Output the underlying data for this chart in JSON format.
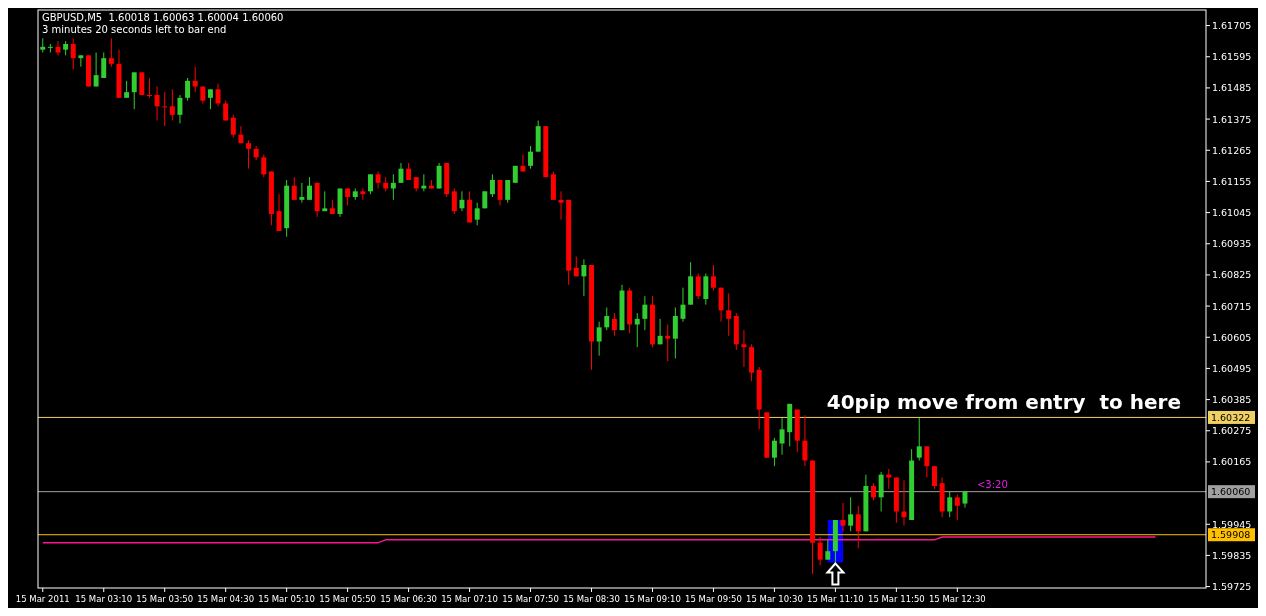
{
  "chart_data": {
    "type": "candlestick",
    "title": "GBPUSD,M5  1.60018 1.60063 1.60004 1.60060",
    "subtitle": "3 minutes 20 seconds left to bar end",
    "categories": [
      "15 Mar 2011",
      null,
      null,
      null,
      null,
      null,
      null,
      null,
      "15 Mar 03:10",
      null,
      null,
      null,
      null,
      null,
      null,
      null,
      "15 Mar 03:50",
      null,
      null,
      null,
      null,
      null,
      null,
      null,
      "15 Mar 04:30",
      null,
      null,
      null,
      null,
      null,
      null,
      null,
      "15 Mar 05:10",
      null,
      null,
      null,
      null,
      null,
      null,
      null,
      "15 Mar 05:50",
      null,
      null,
      null,
      null,
      null,
      null,
      null,
      "15 Mar 06:30",
      null,
      null,
      null,
      null,
      null,
      null,
      null,
      "15 Mar 07:10",
      null,
      null,
      null,
      null,
      null,
      null,
      null,
      "15 Mar 07:50",
      null,
      null,
      null,
      null,
      null,
      null,
      null,
      "15 Mar 08:30",
      null,
      null,
      null,
      null,
      null,
      null,
      null,
      "15 Mar 09:10",
      null,
      null,
      null,
      null,
      null,
      null,
      null,
      "15 Mar 09:50",
      null,
      null,
      null,
      null,
      null,
      null,
      null,
      "15 Mar 10:30",
      null,
      null,
      null,
      null,
      null,
      null,
      null,
      "15 Mar 11:10",
      null,
      null,
      null,
      null,
      null,
      null,
      null,
      "15 Mar 11:50",
      null,
      null,
      null,
      null,
      null,
      null,
      null,
      "15 Mar 12:30",
      null,
      null,
      null,
      null,
      null,
      null,
      null,
      null,
      null,
      null,
      null,
      null,
      null,
      null,
      null,
      null,
      null,
      null,
      null,
      null,
      null,
      null,
      null,
      null,
      null,
      null,
      null,
      null,
      null,
      null,
      null,
      null
    ],
    "ohlc": [
      [
        1.6162,
        1.6166,
        1.6161,
        1.6163
      ],
      [
        1.6163,
        1.6164,
        1.6161,
        1.6163
      ],
      [
        1.6163,
        1.6165,
        1.616,
        1.6161
      ],
      [
        1.6162,
        1.6165,
        1.616,
        1.6164
      ],
      [
        1.6164,
        1.6166,
        1.6155,
        1.6159
      ],
      [
        1.6159,
        1.616,
        1.6156,
        1.616
      ],
      [
        1.616,
        1.616,
        1.6149,
        1.6149
      ],
      [
        1.6149,
        1.6161,
        1.6149,
        1.6153
      ],
      [
        1.6152,
        1.6161,
        1.6152,
        1.6159
      ],
      [
        1.6159,
        1.6166,
        1.6156,
        1.6157
      ],
      [
        1.6157,
        1.6162,
        1.6145,
        1.6145
      ],
      [
        1.6145,
        1.6151,
        1.6145,
        1.6147
      ],
      [
        1.6147,
        1.6154,
        1.6141,
        1.6154
      ],
      [
        1.6154,
        1.6154,
        1.6146,
        1.6146
      ],
      [
        1.6146,
        1.6152,
        1.6145,
        1.6146
      ],
      [
        1.6146,
        1.6149,
        1.6137,
        1.6142
      ],
      [
        1.6142,
        1.6147,
        1.6135,
        1.6142
      ],
      [
        1.6142,
        1.6148,
        1.6137,
        1.6139
      ],
      [
        1.6139,
        1.6146,
        1.6136,
        1.6145
      ],
      [
        1.6145,
        1.6152,
        1.6144,
        1.6151
      ],
      [
        1.6151,
        1.6156,
        1.6147,
        1.6149
      ],
      [
        1.6149,
        1.6149,
        1.6143,
        1.6144
      ],
      [
        1.6145,
        1.6148,
        1.6141,
        1.6148
      ],
      [
        1.6148,
        1.615,
        1.6142,
        1.6143
      ],
      [
        1.6143,
        1.6144,
        1.6137,
        1.6137
      ],
      [
        1.6138,
        1.6139,
        1.6131,
        1.6132
      ],
      [
        1.6132,
        1.6135,
        1.6129,
        1.6129
      ],
      [
        1.6129,
        1.613,
        1.612,
        1.6127
      ],
      [
        1.6127,
        1.6128,
        1.6123,
        1.6124
      ],
      [
        1.6124,
        1.6125,
        1.6117,
        1.6118
      ],
      [
        1.6119,
        1.6119,
        1.61,
        1.6104
      ],
      [
        1.6105,
        1.6111,
        1.6098,
        1.6098
      ],
      [
        1.6099,
        1.6116,
        1.6096,
        1.6114
      ],
      [
        1.6114,
        1.6117,
        1.6109,
        1.6109
      ],
      [
        1.6109,
        1.6115,
        1.6108,
        1.611
      ],
      [
        1.6109,
        1.6117,
        1.6109,
        1.6114
      ],
      [
        1.6115,
        1.6115,
        1.6103,
        1.6105
      ],
      [
        1.6105,
        1.6112,
        1.6105,
        1.6106
      ],
      [
        1.6106,
        1.6109,
        1.6104,
        1.6104
      ],
      [
        1.6104,
        1.6113,
        1.6103,
        1.6113
      ],
      [
        1.6113,
        1.6113,
        1.6107,
        1.611
      ],
      [
        1.611,
        1.6113,
        1.6109,
        1.6112
      ],
      [
        1.6112,
        1.6113,
        1.6109,
        1.6111
      ],
      [
        1.6112,
        1.6118,
        1.6111,
        1.6118
      ],
      [
        1.6118,
        1.6119,
        1.6113,
        1.6115
      ],
      [
        1.6115,
        1.6117,
        1.6112,
        1.6113
      ],
      [
        1.6113,
        1.6118,
        1.6109,
        1.6115
      ],
      [
        1.6115,
        1.6122,
        1.6115,
        1.612
      ],
      [
        1.612,
        1.6122,
        1.6116,
        1.6116
      ],
      [
        1.6117,
        1.6117,
        1.6112,
        1.6113
      ],
      [
        1.6113,
        1.6118,
        1.6112,
        1.6114
      ],
      [
        1.6114,
        1.6116,
        1.6113,
        1.6113
      ],
      [
        1.6113,
        1.6122,
        1.6113,
        1.6121
      ],
      [
        1.6122,
        1.6122,
        1.611,
        1.6111
      ],
      [
        1.6112,
        1.6113,
        1.6104,
        1.6105
      ],
      [
        1.6106,
        1.6112,
        1.6105,
        1.6109
      ],
      [
        1.6109,
        1.6112,
        1.6101,
        1.6101
      ],
      [
        1.6102,
        1.6108,
        1.61,
        1.6106
      ],
      [
        1.6106,
        1.6112,
        1.6106,
        1.6112
      ],
      [
        1.6111,
        1.6118,
        1.611,
        1.6116
      ],
      [
        1.6116,
        1.6116,
        1.6107,
        1.6109
      ],
      [
        1.6109,
        1.6116,
        1.6108,
        1.6116
      ],
      [
        1.6115,
        1.6121,
        1.6115,
        1.6121
      ],
      [
        1.6121,
        1.6125,
        1.6119,
        1.6119
      ],
      [
        1.6121,
        1.6128,
        1.612,
        1.6126
      ],
      [
        1.6126,
        1.6137,
        1.6126,
        1.6135
      ],
      [
        1.6135,
        1.6135,
        1.6117,
        1.6117
      ],
      [
        1.6118,
        1.6119,
        1.6109,
        1.6109
      ],
      [
        1.6109,
        1.6112,
        1.6102,
        1.6108
      ],
      [
        1.6109,
        1.6109,
        1.6079,
        1.6084
      ],
      [
        1.6085,
        1.6089,
        1.6082,
        1.6082
      ],
      [
        1.6082,
        1.6088,
        1.6075,
        1.6086
      ],
      [
        1.6086,
        1.6086,
        1.6049,
        1.6059
      ],
      [
        1.6059,
        1.6066,
        1.6054,
        1.6064
      ],
      [
        1.6064,
        1.6071,
        1.6063,
        1.6068
      ],
      [
        1.6067,
        1.6069,
        1.6061,
        1.6063
      ],
      [
        1.6063,
        1.6079,
        1.6063,
        1.6077
      ],
      [
        1.6077,
        1.6078,
        1.6062,
        1.6065
      ],
      [
        1.6065,
        1.6069,
        1.6057,
        1.6067
      ],
      [
        1.6067,
        1.6075,
        1.6063,
        1.6072
      ],
      [
        1.6072,
        1.6075,
        1.6057,
        1.6058
      ],
      [
        1.6058,
        1.6067,
        1.6058,
        1.6061
      ],
      [
        1.6061,
        1.6065,
        1.6052,
        1.606
      ],
      [
        1.606,
        1.6071,
        1.6053,
        1.6068
      ],
      [
        1.6067,
        1.6078,
        1.6066,
        1.6072
      ],
      [
        1.6072,
        1.6087,
        1.6072,
        1.6082
      ],
      [
        1.6082,
        1.6083,
        1.6074,
        1.6075
      ],
      [
        1.6074,
        1.6083,
        1.6072,
        1.6082
      ],
      [
        1.6082,
        1.6086,
        1.6077,
        1.6078
      ],
      [
        1.6078,
        1.6078,
        1.6066,
        1.607
      ],
      [
        1.607,
        1.6076,
        1.6061,
        1.6067
      ],
      [
        1.6068,
        1.6069,
        1.6056,
        1.6058
      ],
      [
        1.6058,
        1.6063,
        1.605,
        1.6057
      ],
      [
        1.6057,
        1.6058,
        1.6045,
        1.6048
      ],
      [
        1.6049,
        1.605,
        1.6028,
        1.6035
      ],
      [
        1.6034,
        1.6034,
        1.6018,
        1.6018
      ],
      [
        1.6018,
        1.6025,
        1.6015,
        1.6024
      ],
      [
        1.6023,
        1.6032,
        1.6019,
        1.6028
      ],
      [
        1.6027,
        1.6037,
        1.6022,
        1.6037
      ],
      [
        1.6035,
        1.6035,
        1.602,
        1.6024
      ],
      [
        1.6024,
        1.6033,
        1.6015,
        1.6017
      ],
      [
        1.6017,
        1.6017,
        1.5977,
        1.5988
      ],
      [
        1.5988,
        1.599,
        1.598,
        1.5982
      ],
      [
        1.5982,
        1.5989,
        1.5982,
        1.5985
      ],
      [
        1.5985,
        1.5996,
        1.5981,
        1.5996
      ],
      [
        1.5996,
        1.6002,
        1.5992,
        1.5994
      ],
      [
        1.5994,
        1.6004,
        1.5992,
        1.5998
      ],
      [
        1.5998,
        1.6001,
        1.5986,
        1.5992
      ],
      [
        1.5992,
        1.6012,
        1.5992,
        1.6008
      ],
      [
        1.6008,
        1.6009,
        1.6003,
        1.6004
      ],
      [
        1.6004,
        1.6013,
        1.5999,
        1.6012
      ],
      [
        1.6012,
        1.6014,
        1.6007,
        1.6011
      ],
      [
        1.6011,
        1.6011,
        1.5995,
        1.5999
      ],
      [
        1.5999,
        1.601,
        1.5994,
        1.5997
      ],
      [
        1.5996,
        1.6021,
        1.5996,
        1.6017
      ],
      [
        1.6018,
        1.6032,
        1.6017,
        1.6022
      ],
      [
        1.6022,
        1.6022,
        1.6011,
        1.6015
      ],
      [
        1.6015,
        1.6015,
        1.6007,
        1.6008
      ],
      [
        1.6009,
        1.6011,
        1.5997,
        1.5999
      ],
      [
        1.5999,
        1.6006,
        1.5997,
        1.6004
      ],
      [
        1.6004,
        1.6005,
        1.5996,
        1.6001
      ],
      [
        1.60018,
        1.60063,
        1.60004,
        1.6006
      ],
      null,
      null,
      null,
      null,
      null,
      null,
      null,
      null,
      null,
      null,
      null,
      null,
      null,
      null,
      null,
      null,
      null,
      null,
      null,
      null,
      null,
      null,
      null,
      null,
      null,
      null,
      null,
      null,
      null,
      null,
      null
    ],
    "colors": [
      "#32cd32",
      "#32cd32",
      "#ff0000",
      "#32cd32",
      "#ff0000",
      "#32cd32",
      "#ff0000",
      "#32cd32",
      "#32cd32",
      "#ff0000",
      "#ff0000",
      "#32cd32",
      "#32cd32",
      "#ff0000",
      "#ff0000",
      "#ff0000",
      "#ff0000",
      "#ff0000",
      "#32cd32",
      "#32cd32",
      "#ff0000",
      "#ff0000",
      "#32cd32",
      "#ff0000",
      "#ff0000",
      "#ff0000",
      "#ff0000",
      "#ff0000",
      "#ff0000",
      "#ff0000",
      "#ff0000",
      "#ff0000",
      "#32cd32",
      "#ff0000",
      "#32cd32",
      "#32cd32",
      "#ff0000",
      "#32cd32",
      "#ff0000",
      "#32cd32",
      "#ff0000",
      "#32cd32",
      "#ff0000",
      "#32cd32",
      "#ff0000",
      "#ff0000",
      "#32cd32",
      "#32cd32",
      "#ff0000",
      "#ff0000",
      "#32cd32",
      "#ff0000",
      "#32cd32",
      "#ff0000",
      "#ff0000",
      "#32cd32",
      "#ff0000",
      "#32cd32",
      "#32cd32",
      "#32cd32",
      "#ff0000",
      "#32cd32",
      "#32cd32",
      "#ff0000",
      "#32cd32",
      "#32cd32",
      "#ff0000",
      "#ff0000",
      "#ff0000",
      "#ff0000",
      "#ff0000",
      "#32cd32",
      "#ff0000",
      "#32cd32",
      "#32cd32",
      "#ff0000",
      "#32cd32",
      "#ff0000",
      "#32cd32",
      "#32cd32",
      "#ff0000",
      "#32cd32",
      "#ff0000",
      "#32cd32",
      "#32cd32",
      "#32cd32",
      "#ff0000",
      "#32cd32",
      "#ff0000",
      "#ff0000",
      "#ff0000",
      "#ff0000",
      "#ff0000",
      "#ff0000",
      "#ff0000",
      "#ff0000",
      "#32cd32",
      "#32cd32",
      "#32cd32",
      "#ff0000",
      "#ff0000",
      "#ff0000",
      "#ff0000",
      "#32cd32",
      "#32cd32",
      "#ff0000",
      "#32cd32",
      "#ff0000",
      "#32cd32",
      "#ff0000",
      "#32cd32",
      "#ff0000",
      "#ff0000",
      "#ff0000",
      "#32cd32",
      "#32cd32",
      "#ff0000",
      "#ff0000",
      "#ff0000",
      "#32cd32",
      "#ff0000",
      "#32cd32",
      null,
      null,
      null,
      null,
      null,
      null,
      null,
      null,
      null,
      null,
      null,
      null,
      null,
      null,
      null,
      null,
      null,
      null,
      null,
      null,
      null,
      null,
      null,
      null,
      null,
      null,
      null,
      null,
      null,
      null,
      null
    ],
    "series": [
      {
        "type": "line",
        "color": "#ff1493",
        "values": [
          1.5988,
          1.5988,
          1.5988,
          1.5988,
          1.5988,
          1.5988,
          1.5988,
          1.5988,
          1.5988,
          1.5988,
          1.5988,
          1.5988,
          1.5988,
          1.5988,
          1.5988,
          1.5988,
          1.5988,
          1.5988,
          1.5988,
          1.5988,
          1.5988,
          1.5988,
          1.5988,
          1.5988,
          1.5988,
          1.5988,
          1.5988,
          1.5988,
          1.5988,
          1.5988,
          1.5988,
          1.5988,
          1.5988,
          1.5988,
          1.5988,
          1.5988,
          1.5988,
          1.5988,
          1.5988,
          1.5988,
          1.5988,
          1.5988,
          1.5988,
          1.5988,
          1.5988,
          1.5989,
          1.5989,
          1.5989,
          1.5989,
          1.5989,
          1.5989,
          1.5989,
          1.5989,
          1.5989,
          1.5989,
          1.5989,
          1.5989,
          1.5989,
          1.5989,
          1.5989,
          1.5989,
          1.5989,
          1.5989,
          1.5989,
          1.5989,
          1.5989,
          1.5989,
          1.5989,
          1.5989,
          1.5989,
          1.5989,
          1.5989,
          1.5989,
          1.5989,
          1.5989,
          1.5989,
          1.5989,
          1.5989,
          1.5989,
          1.5989,
          1.5989,
          1.5989,
          1.5989,
          1.5989,
          1.5989,
          1.5989,
          1.5989,
          1.5989,
          1.5989,
          1.5989,
          1.5989,
          1.5989,
          1.5989,
          1.5989,
          1.5989,
          1.5989,
          1.5989,
          1.5989,
          1.5989,
          1.5989,
          1.5989,
          1.5989,
          1.5989,
          1.5989,
          1.5989,
          1.5989,
          1.5989,
          1.5989,
          1.5989,
          1.5989,
          1.5989,
          1.5989,
          1.5989,
          1.5989,
          1.5989,
          1.5989,
          1.5989,
          1.5989,
          1.599,
          1.599,
          1.599,
          1.599,
          1.599,
          1.599,
          1.599,
          1.599,
          1.599,
          1.599,
          1.599,
          1.599,
          1.599,
          1.599,
          1.599,
          1.599,
          1.599,
          1.599,
          1.599,
          1.599,
          1.599,
          1.599,
          1.599,
          1.599,
          1.599,
          1.599,
          1.599,
          1.599,
          1.599,
          null,
          null,
          null,
          null,
          null,
          null
        ]
      }
    ],
    "ylim": [
      1.5972,
      1.6176
    ],
    "yticks": [
      1.61705,
      1.61595,
      1.61485,
      1.61375,
      1.61265,
      1.61155,
      1.61045,
      1.60935,
      1.60825,
      1.60715,
      1.60605,
      1.60495,
      1.60385,
      1.60275,
      1.60165,
      1.59945,
      1.59835,
      1.59725
    ],
    "ref_lines": [
      {
        "axis": "y",
        "value": 1.60322,
        "label": "1.60322",
        "color": "#f0d060"
      },
      {
        "axis": "y",
        "value": 1.6006,
        "label": "1.60060",
        "color": "#a0a0a0"
      },
      {
        "axis": "y",
        "value": 1.59908,
        "label": "1.59908",
        "color": "#ffc000"
      }
    ],
    "annotations": [
      {
        "text": "40pip move from entry  to here",
        "y": 1.60322
      },
      {
        "text": "<3:20",
        "y": 1.6006
      }
    ]
  }
}
